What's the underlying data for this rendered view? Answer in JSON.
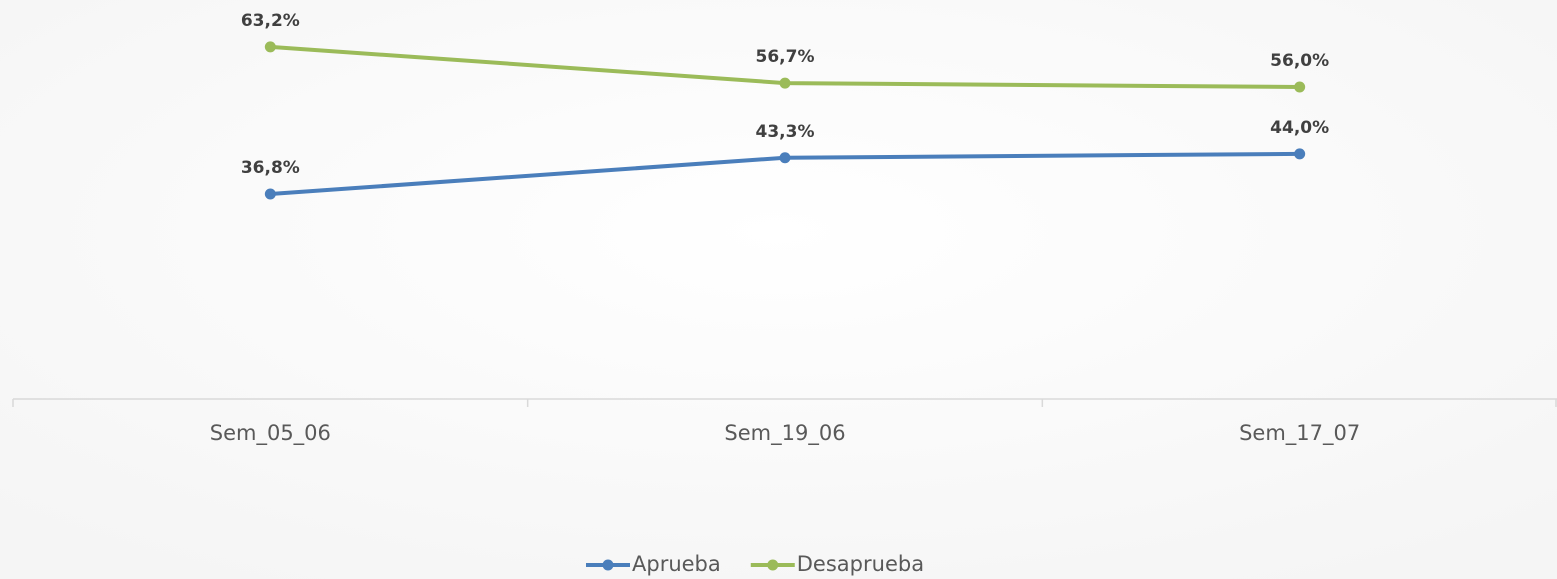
{
  "chart_data": {
    "type": "line",
    "categories": [
      "Sem_05_06",
      "Sem_19_06",
      "Sem_17_07"
    ],
    "series": [
      {
        "name": "Aprueba",
        "color": "#4a7ebb",
        "values": [
          36.8,
          43.3,
          44.0
        ],
        "value_labels": [
          "36,8%",
          "43,3%",
          "44,0%"
        ]
      },
      {
        "name": "Desaprueba",
        "color": "#9bbb59",
        "values": [
          63.2,
          56.7,
          56.0
        ],
        "value_labels": [
          "63,2%",
          "56,7%",
          "56,0%"
        ]
      }
    ],
    "ylim": [
      0,
      70
    ],
    "legend": "bottom"
  }
}
